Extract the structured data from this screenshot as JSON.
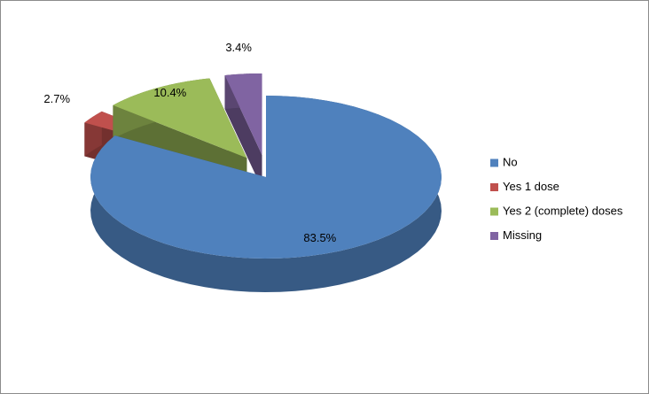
{
  "chart_data": {
    "type": "pie3d",
    "categories": [
      "No",
      "Yes 1 dose",
      "Yes 2 (complete) doses",
      "Missing"
    ],
    "values": [
      83.5,
      2.7,
      10.4,
      3.4
    ],
    "value_labels": [
      "83.5%",
      "2.7%",
      "10.4%",
      "3.4%"
    ],
    "colors": [
      "#4f81bd",
      "#c0504d",
      "#9bbb59",
      "#8064a2"
    ],
    "legend": "right"
  }
}
